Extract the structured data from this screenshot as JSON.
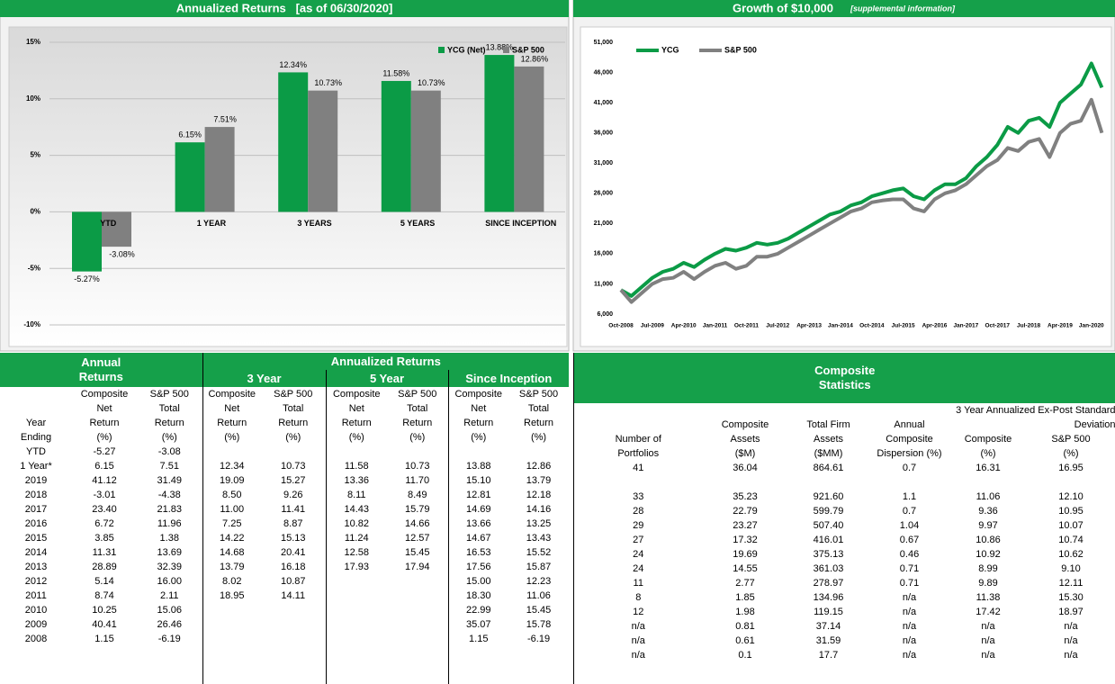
{
  "chart_data": [
    {
      "type": "bar",
      "title": "Annualized Returns   [as of 06/30/2020]",
      "categories": [
        "YTD",
        "1 YEAR",
        "3 YEARS",
        "5 YEARS",
        "SINCE INCEPTION"
      ],
      "series": [
        {
          "name": "YCG (Net)",
          "color": "#0b9b46",
          "values": [
            -5.27,
            6.15,
            12.34,
            11.58,
            13.88
          ],
          "value_labels": [
            "-5.27%",
            "6.15%",
            "12.34%",
            "11.58%",
            "13.88%"
          ]
        },
        {
          "name": "S&P 500",
          "color": "#808080",
          "values": [
            -3.08,
            7.51,
            10.73,
            10.73,
            12.86
          ],
          "value_labels": [
            "-3.08%",
            "7.51%",
            "10.73%",
            "10.73%",
            "12.86%"
          ]
        }
      ],
      "ylim": [
        -11,
        15
      ],
      "yticks": [
        {
          "value": -10,
          "label": "-10%"
        },
        {
          "value": -5,
          "label": "-5%"
        },
        {
          "value": 0,
          "label": "0%"
        },
        {
          "value": 5,
          "label": "5%"
        },
        {
          "value": 10,
          "label": "10%"
        },
        {
          "value": 15,
          "label": "15%"
        }
      ],
      "grid": true,
      "legend": "upper right"
    },
    {
      "type": "line",
      "title": "Growth of $10,000",
      "subtitle": "[supplemental information]",
      "x": [
        "Oct-2008",
        null,
        null,
        "Jul-2009",
        null,
        null,
        "Apr-2010",
        null,
        null,
        "Jan-2011",
        null,
        null,
        "Oct-2011",
        null,
        null,
        "Jul-2012",
        null,
        null,
        "Apr-2013",
        null,
        null,
        "Jan-2014",
        null,
        null,
        "Oct-2014",
        null,
        null,
        "Jul-2015",
        null,
        null,
        "Apr-2016",
        null,
        null,
        "Jan-2017",
        null,
        null,
        "Oct-2017",
        null,
        null,
        "Jul-2018",
        null,
        null,
        "Apr-2019",
        null,
        null,
        "Jan-2020",
        null
      ],
      "series": [
        {
          "name": "YCG",
          "color": "#0b9b46",
          "values": [
            10000,
            9000,
            10500,
            12000,
            13000,
            13500,
            14500,
            13800,
            15000,
            16000,
            16800,
            16500,
            17000,
            17800,
            17500,
            17800,
            18500,
            19500,
            20500,
            21500,
            22500,
            23000,
            24000,
            24500,
            25500,
            26000,
            26500,
            26800,
            25500,
            25000,
            26500,
            27500,
            27500,
            28500,
            30500,
            32000,
            34000,
            37000,
            36000,
            38000,
            38500,
            37000,
            41000,
            42500,
            44000,
            47500,
            43500
          ]
        },
        {
          "name": "S&P 500",
          "color": "#808080",
          "values": [
            10000,
            8000,
            9500,
            11000,
            11800,
            12000,
            13000,
            11800,
            13000,
            14000,
            14500,
            13500,
            14000,
            15500,
            15500,
            16000,
            17000,
            18000,
            19000,
            20000,
            21000,
            22000,
            23000,
            23500,
            24500,
            24800,
            25000,
            25000,
            23500,
            23000,
            25000,
            26000,
            26500,
            27500,
            29000,
            30500,
            31500,
            33500,
            33000,
            34500,
            35000,
            32000,
            36000,
            37500,
            38000,
            41500,
            36000
          ]
        }
      ],
      "ylim": [
        6000,
        51000
      ],
      "yticks": [
        {
          "value": 6000,
          "label": "6,000"
        },
        {
          "value": 11000,
          "label": "11,000"
        },
        {
          "value": 16000,
          "label": "16,000"
        },
        {
          "value": 21000,
          "label": "21,000"
        },
        {
          "value": 26000,
          "label": "26,000"
        },
        {
          "value": 31000,
          "label": "31,000"
        },
        {
          "value": 36000,
          "label": "36,000"
        },
        {
          "value": 41000,
          "label": "41,000"
        },
        {
          "value": 46000,
          "label": "46,000"
        },
        {
          "value": 51000,
          "label": "51,000"
        }
      ],
      "grid": false,
      "legend": "upper left"
    }
  ],
  "returns_table": {
    "title": "Annual Returns",
    "group_title": "Annualized Returns",
    "groups": [
      "3 Year",
      "5 Year",
      "Since Inception"
    ],
    "column_headers": [
      "Year\nEnding",
      "Composite\nNet\nReturn\n(%)",
      "S&P 500\nTotal\nReturn\n(%)",
      "Composite\nNet\nReturn\n(%)",
      "S&P 500\nTotal\nReturn\n(%)",
      "Composite\nNet\nReturn\n(%)",
      "S&P 500\nTotal\nReturn\n(%)",
      "Composite\nNet\nReturn\n(%)",
      "S&P 500\nTotal\nReturn\n(%)"
    ],
    "rows": [
      {
        "year": "YTD",
        "annual": [
          "-5.27",
          "-3.08"
        ]
      },
      {
        "year": "1 Year*",
        "annual": [
          "6.15",
          "7.51"
        ],
        "y3": [
          "12.34",
          "10.73"
        ],
        "y5": [
          "11.58",
          "10.73"
        ],
        "si": [
          "13.88",
          "12.86"
        ]
      },
      {
        "year": "2019",
        "annual": [
          "41.12",
          "31.49"
        ],
        "y3": [
          "19.09",
          "15.27"
        ],
        "y5": [
          "13.36",
          "11.70"
        ],
        "si": [
          "15.10",
          "13.79"
        ]
      },
      {
        "year": "2018",
        "annual": [
          "-3.01",
          "-4.38"
        ],
        "y3": [
          "8.50",
          "9.26"
        ],
        "y5": [
          "8.11",
          "8.49"
        ],
        "si": [
          "12.81",
          "12.18"
        ]
      },
      {
        "year": "2017",
        "annual": [
          "23.40",
          "21.83"
        ],
        "y3": [
          "11.00",
          "11.41"
        ],
        "y5": [
          "14.43",
          "15.79"
        ],
        "si": [
          "14.69",
          "14.16"
        ]
      },
      {
        "year": "2016",
        "annual": [
          "6.72",
          "11.96"
        ],
        "y3": [
          "7.25",
          "8.87"
        ],
        "y5": [
          "10.82",
          "14.66"
        ],
        "si": [
          "13.66",
          "13.25"
        ]
      },
      {
        "year": "2015",
        "annual": [
          "3.85",
          "1.38"
        ],
        "y3": [
          "14.22",
          "15.13"
        ],
        "y5": [
          "11.24",
          "12.57"
        ],
        "si": [
          "14.67",
          "13.43"
        ]
      },
      {
        "year": "2014",
        "annual": [
          "11.31",
          "13.69"
        ],
        "y3": [
          "14.68",
          "20.41"
        ],
        "y5": [
          "12.58",
          "15.45"
        ],
        "si": [
          "16.53",
          "15.52"
        ]
      },
      {
        "year": "2013",
        "annual": [
          "28.89",
          "32.39"
        ],
        "y3": [
          "13.79",
          "16.18"
        ],
        "y5": [
          "17.93",
          "17.94"
        ],
        "si": [
          "17.56",
          "15.87"
        ]
      },
      {
        "year": "2012",
        "annual": [
          "5.14",
          "16.00"
        ],
        "y3": [
          "8.02",
          "10.87"
        ],
        "si": [
          "15.00",
          "12.23"
        ]
      },
      {
        "year": "2011",
        "annual": [
          "8.74",
          "2.11"
        ],
        "y3": [
          "18.95",
          "14.11"
        ],
        "si": [
          "18.30",
          "11.06"
        ]
      },
      {
        "year": "2010",
        "annual": [
          "10.25",
          "15.06"
        ],
        "si": [
          "22.99",
          "15.45"
        ]
      },
      {
        "year": "2009",
        "annual": [
          "40.41",
          "26.46"
        ],
        "si": [
          "35.07",
          "15.78"
        ]
      },
      {
        "year": "2008",
        "annual": [
          "1.15",
          "-6.19"
        ],
        "si": [
          "1.15",
          "-6.19"
        ]
      }
    ]
  },
  "statistics_table": {
    "title": "Composite Statistics",
    "column_headers": [
      "Number of\nPortfolios",
      "Composite\nAssets\n($M)",
      "Total Firm\nAssets\n($MM)",
      "Annual\nComposite\nDispersion (%)"
    ],
    "deviation_header": "3 Year Annualized Ex-Post Standard Deviation",
    "deviation_columns": [
      "Composite\n(%)",
      "S&P 500\n(%)"
    ],
    "rows": [
      {
        "stats": [
          "41",
          "36.04",
          "864.61",
          "0.7",
          "16.31",
          "16.95"
        ]
      },
      {},
      {
        "stats": [
          "33",
          "35.23",
          "921.60",
          "1.1",
          "11.06",
          "12.10"
        ]
      },
      {
        "stats": [
          "28",
          "22.79",
          "599.79",
          "0.7",
          "9.36",
          "10.95"
        ]
      },
      {
        "stats": [
          "29",
          "23.27",
          "507.40",
          "1.04",
          "9.97",
          "10.07"
        ]
      },
      {
        "stats": [
          "27",
          "17.32",
          "416.01",
          "0.67",
          "10.86",
          "10.74"
        ]
      },
      {
        "stats": [
          "24",
          "19.69",
          "375.13",
          "0.46",
          "10.92",
          "10.62"
        ]
      },
      {
        "stats": [
          "24",
          "14.55",
          "361.03",
          "0.71",
          "8.99",
          "9.10"
        ]
      },
      {
        "stats": [
          "11",
          "2.77",
          "278.97",
          "0.71",
          "9.89",
          "12.11"
        ]
      },
      {
        "stats": [
          "8",
          "1.85",
          "134.96",
          "n/a",
          "11.38",
          "15.30"
        ]
      },
      {
        "stats": [
          "12",
          "1.98",
          "119.15",
          "n/a",
          "17.42",
          "18.97"
        ]
      },
      {
        "stats": [
          "n/a",
          "0.81",
          "37.14",
          "n/a",
          "n/a",
          "n/a"
        ]
      },
      {
        "stats": [
          "n/a",
          "0.61",
          "31.59",
          "n/a",
          "n/a",
          "n/a"
        ]
      },
      {
        "stats": [
          "n/a",
          "0.1",
          "17.7",
          "n/a",
          "n/a",
          "n/a"
        ]
      }
    ]
  }
}
